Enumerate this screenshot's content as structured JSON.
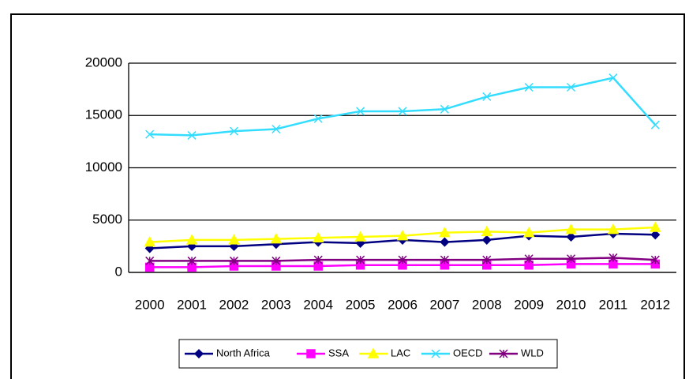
{
  "chart_data": {
    "type": "line",
    "categories": [
      "2000",
      "2001",
      "2002",
      "2003",
      "2004",
      "2005",
      "2006",
      "2007",
      "2008",
      "2009",
      "2010",
      "2011",
      "2012"
    ],
    "series": [
      {
        "name": "North Africa",
        "color": "#000080",
        "marker": "diamond",
        "values": [
          2300,
          2500,
          2500,
          2700,
          2900,
          2800,
          3100,
          2900,
          3100,
          3500,
          3400,
          3700,
          3600
        ]
      },
      {
        "name": "SSA",
        "color": "#ff00ff",
        "marker": "square",
        "values": [
          500,
          500,
          600,
          600,
          600,
          700,
          700,
          700,
          700,
          700,
          800,
          800,
          800
        ]
      },
      {
        "name": "LAC",
        "color": "#ffff00",
        "marker": "triangle",
        "values": [
          2900,
          3100,
          3100,
          3200,
          3300,
          3400,
          3500,
          3800,
          3900,
          3800,
          4100,
          4100,
          4300
        ]
      },
      {
        "name": "OECD",
        "color": "#33ddff",
        "marker": "x",
        "values": [
          13200,
          13100,
          13500,
          13700,
          14700,
          15400,
          15400,
          15600,
          16800,
          17700,
          17700,
          18600,
          14100
        ]
      },
      {
        "name": "WLD",
        "color": "#800080",
        "marker": "star",
        "values": [
          1100,
          1100,
          1100,
          1100,
          1200,
          1200,
          1200,
          1200,
          1200,
          1300,
          1300,
          1400,
          1200
        ]
      }
    ],
    "ylim": [
      0,
      20000
    ],
    "yticks": [
      0,
      5000,
      10000,
      15000,
      20000
    ],
    "grid": true,
    "legend": "bottom"
  }
}
